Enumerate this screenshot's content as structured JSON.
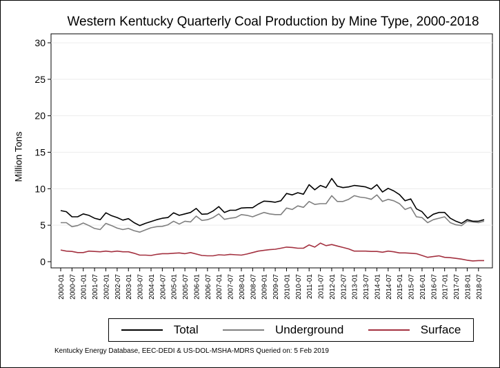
{
  "chart_data": {
    "type": "line",
    "title": "Western Kentucky Quarterly Coal Production by Mine Type, 2000-2018",
    "ylabel": "Million Tons",
    "xlabel": "",
    "ylim": [
      0,
      30
    ],
    "yticks": [
      0,
      5,
      10,
      15,
      20,
      25,
      30
    ],
    "grid": true,
    "legend_position": "bottom",
    "x_start": "2000-01",
    "quarters_per_year": 4,
    "x_tick_labels": [
      "2000-01",
      "2000-07",
      "2001-01",
      "2001-07",
      "2002-01",
      "2002-07",
      "2003-01",
      "2003-07",
      "2004-01",
      "2004-07",
      "2005-01",
      "2005-07",
      "2006-01",
      "2006-07",
      "2007-01",
      "2007-07",
      "2008-01",
      "2008-07",
      "2009-01",
      "2009-07",
      "2010-01",
      "2010-07",
      "2011-01",
      "2011-07",
      "2012-01",
      "2012-07",
      "2013-01",
      "2013-07",
      "2014-01",
      "2014-07",
      "2015-01",
      "2015-07",
      "2016-01",
      "2016-07",
      "2017-01",
      "2017-07",
      "2018-01",
      "2018-07"
    ],
    "series": [
      {
        "name": "Total",
        "color": "#000000",
        "values": [
          7.0,
          6.85,
          6.15,
          6.15,
          6.55,
          6.35,
          5.95,
          5.75,
          6.7,
          6.3,
          6.05,
          5.7,
          5.9,
          5.35,
          4.95,
          5.25,
          5.5,
          5.75,
          5.95,
          6.05,
          6.7,
          6.35,
          6.55,
          6.75,
          7.3,
          6.5,
          6.55,
          6.95,
          7.55,
          6.75,
          7.05,
          7.05,
          7.35,
          7.4,
          7.4,
          7.9,
          8.3,
          8.25,
          8.15,
          8.35,
          9.35,
          9.15,
          9.45,
          9.25,
          10.55,
          9.85,
          10.45,
          10.15,
          11.4,
          10.35,
          10.15,
          10.25,
          10.45,
          10.35,
          10.25,
          9.95,
          10.55,
          9.55,
          10.05,
          9.7,
          9.2,
          8.35,
          8.6,
          7.25,
          6.85,
          5.95,
          6.5,
          6.75,
          6.75,
          5.95,
          5.55,
          5.25,
          5.75,
          5.55,
          5.55,
          5.75
        ]
      },
      {
        "name": "Underground",
        "color": "#7f7f7f",
        "values": [
          5.35,
          5.35,
          4.8,
          4.95,
          5.3,
          4.95,
          4.55,
          4.4,
          5.25,
          4.95,
          4.6,
          4.4,
          4.55,
          4.25,
          4.05,
          4.35,
          4.65,
          4.8,
          4.85,
          5.05,
          5.55,
          5.15,
          5.55,
          5.45,
          6.25,
          5.65,
          5.75,
          6.05,
          6.55,
          5.8,
          5.95,
          6.05,
          6.45,
          6.35,
          6.15,
          6.45,
          6.75,
          6.55,
          6.45,
          6.45,
          7.35,
          7.15,
          7.65,
          7.45,
          8.25,
          7.85,
          7.95,
          7.95,
          9.05,
          8.25,
          8.25,
          8.55,
          9.05,
          8.85,
          8.75,
          8.55,
          9.15,
          8.25,
          8.55,
          8.35,
          7.95,
          7.15,
          7.45,
          6.15,
          6.05,
          5.35,
          5.75,
          5.95,
          6.15,
          5.35,
          5.05,
          4.95,
          5.55,
          5.45,
          5.35,
          5.55
        ]
      },
      {
        "name": "Surface",
        "color": "#a3303f",
        "values": [
          1.6,
          1.45,
          1.4,
          1.25,
          1.25,
          1.45,
          1.4,
          1.35,
          1.45,
          1.35,
          1.45,
          1.35,
          1.35,
          1.15,
          0.9,
          0.9,
          0.85,
          1.0,
          1.1,
          1.1,
          1.15,
          1.2,
          1.1,
          1.25,
          1.05,
          0.85,
          0.8,
          0.8,
          0.95,
          0.9,
          1.0,
          0.95,
          0.9,
          1.05,
          1.25,
          1.45,
          1.55,
          1.65,
          1.7,
          1.85,
          2.0,
          1.95,
          1.85,
          1.85,
          2.3,
          2.0,
          2.55,
          2.2,
          2.35,
          2.15,
          1.95,
          1.75,
          1.45,
          1.45,
          1.45,
          1.4,
          1.4,
          1.3,
          1.45,
          1.35,
          1.2,
          1.2,
          1.15,
          1.1,
          0.85,
          0.6,
          0.7,
          0.8,
          0.6,
          0.55,
          0.45,
          0.35,
          0.2,
          0.1,
          0.15,
          0.15
        ]
      }
    ]
  },
  "legend": {
    "items": [
      {
        "label": "Total",
        "color": "#000000"
      },
      {
        "label": "Underground",
        "color": "#7f7f7f"
      },
      {
        "label": "Surface",
        "color": "#a3303f"
      }
    ]
  },
  "source_note": "Kentucky Energy Database, EEC-DEDI & US-DOL-MSHA-MDRS Queried on: 5 Feb 2019"
}
